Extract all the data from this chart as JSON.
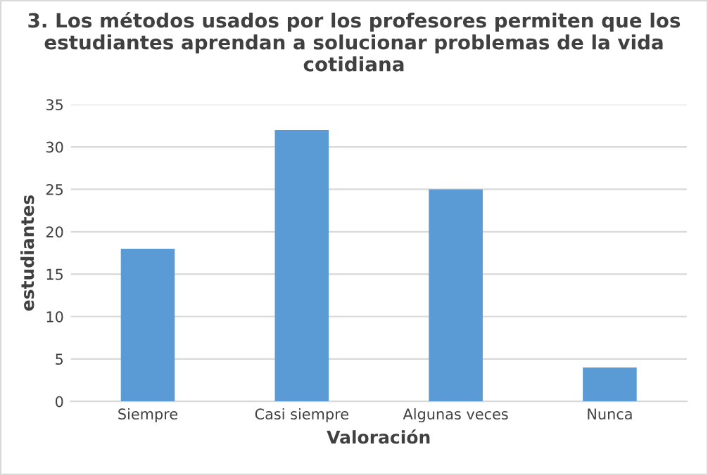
{
  "chart_data": {
    "type": "bar",
    "title": "3. Los métodos usados por los profesores permiten que los estudiantes aprendan a solucionar problemas de la vida cotidiana",
    "xlabel": "Valoración",
    "ylabel": "estudiantes",
    "categories": [
      "Siempre",
      "Casi siempre",
      "Algunas veces",
      "Nunca"
    ],
    "values": [
      18,
      32,
      25,
      4
    ],
    "color": "#5b9bd5",
    "ylim": [
      0,
      35
    ],
    "yticks": [
      0,
      5,
      10,
      15,
      20,
      25,
      30,
      35
    ],
    "grid": "y"
  }
}
